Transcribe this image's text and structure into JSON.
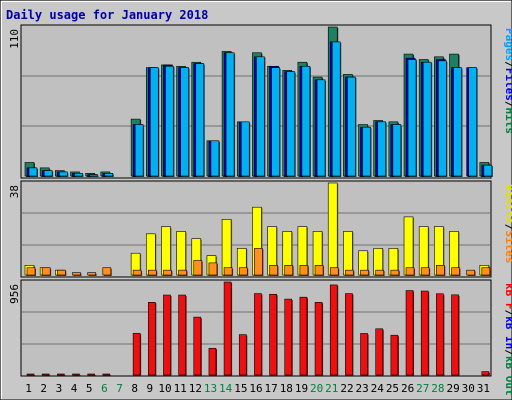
{
  "chart_data": {
    "type": "bar",
    "title": "Daily usage for January 2018",
    "days": [
      "1",
      "2",
      "3",
      "4",
      "5",
      "6",
      "7",
      "8",
      "9",
      "10",
      "11",
      "12",
      "13",
      "14",
      "15",
      "16",
      "17",
      "18",
      "19",
      "20",
      "21",
      "22",
      "23",
      "24",
      "25",
      "26",
      "27",
      "28",
      "29",
      "30",
      "31"
    ],
    "weekend_days": [
      "6",
      "7",
      "13",
      "14",
      "20",
      "21",
      "27",
      "28"
    ],
    "panels": [
      {
        "id": "hits-files-pages",
        "max_label": "110",
        "ymax": 110,
        "legend": [
          {
            "label": "Pages",
            "color": "#00a0ff"
          },
          {
            "label": "/",
            "color": "#000000"
          },
          {
            "label": "Files",
            "color": "#0000ff"
          },
          {
            "label": "/",
            "color": "#000000"
          },
          {
            "label": "Hits",
            "color": "#008040"
          }
        ],
        "series": [
          {
            "name": "Hits",
            "color": "#1e8060",
            "values": [
              10,
              6,
              4,
              3,
              2,
              3,
              0,
              42,
              80,
              82,
              81,
              84,
              26,
              92,
              40,
              91,
              81,
              78,
              84,
              73,
              110,
              75,
              38,
              41,
              40,
              90,
              86,
              88,
              90,
              0,
              10
            ]
          },
          {
            "name": "Files",
            "color": "#0000cc",
            "values": [
              6,
              4,
              3,
              2,
              1,
              2,
              0,
              38,
              80,
              82,
              80,
              83,
              26,
              91,
              40,
              88,
              81,
              77,
              81,
              71,
              99,
              73,
              36,
              40,
              38,
              87,
              84,
              86,
              80,
              80,
              8
            ]
          },
          {
            "name": "Pages",
            "color": "#00b0f0",
            "values": [
              6,
              4,
              3,
              2,
              1,
              2,
              0,
              38,
              80,
              81,
              80,
              83,
              26,
              91,
              40,
              88,
              80,
              77,
              81,
              71,
              99,
              73,
              36,
              40,
              38,
              86,
              84,
              85,
              80,
              80,
              8
            ]
          }
        ]
      },
      {
        "id": "visits-sites",
        "max_label": "38",
        "ymax": 38,
        "legend": [
          {
            "label": "Visits",
            "color": "#e0e000"
          },
          {
            "label": "/",
            "color": "#000000"
          },
          {
            "label": "Sites",
            "color": "#ff8000"
          }
        ],
        "series": [
          {
            "name": "Visits",
            "color": "#ffff00",
            "values": [
              4,
              3,
              2,
              0,
              0,
              0,
              0,
              9,
              17,
              20,
              18,
              15,
              8,
              23,
              11,
              28,
              20,
              18,
              20,
              18,
              38,
              18,
              10,
              11,
              11,
              24,
              20,
              20,
              18,
              0,
              4
            ]
          },
          {
            "name": "Sites",
            "color": "#ff9020",
            "values": [
              3,
              3,
              2,
              1,
              1,
              3,
              0,
              2,
              2,
              2,
              2,
              6,
              5,
              3,
              3,
              11,
              4,
              4,
              4,
              4,
              3,
              2,
              2,
              2,
              2,
              3,
              3,
              4,
              3,
              2,
              3
            ]
          }
        ]
      },
      {
        "id": "kbytes",
        "max_label": "956",
        "ymax": 956,
        "legend": [
          {
            "label": "kB F",
            "color": "#ff0000"
          },
          {
            "label": "/",
            "color": "#000000"
          },
          {
            "label": "kB In",
            "color": "#0000ff"
          },
          {
            "label": "/",
            "color": "#000000"
          },
          {
            "label": "kB Out",
            "color": "#008040"
          }
        ],
        "series": [
          {
            "name": "kB F",
            "color": "#ee1010",
            "values": [
              8,
              8,
              8,
              8,
              8,
              8,
              0,
              429,
              747,
              822,
              822,
              595,
              275,
              956,
              415,
              837,
              830,
              780,
              800,
              747,
              926,
              837,
              427,
              475,
              409,
              868,
              863,
              835,
              824,
              0,
              35
            ]
          }
        ]
      }
    ]
  }
}
